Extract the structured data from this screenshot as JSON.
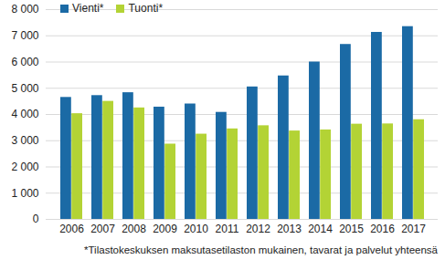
{
  "chart_data": {
    "type": "bar",
    "categories": [
      "2006",
      "2007",
      "2008",
      "2009",
      "2010",
      "2011",
      "2012",
      "2013",
      "2014",
      "2015",
      "2016",
      "2017"
    ],
    "series": [
      {
        "name": "Vienti*",
        "color": "#1b6aa5",
        "values": [
          4650,
          4720,
          4830,
          4280,
          4400,
          4080,
          5050,
          5470,
          6000,
          6670,
          7130,
          7350
        ]
      },
      {
        "name": "Tuonti*",
        "color": "#b3d335",
        "values": [
          4030,
          4500,
          4250,
          2870,
          3250,
          3450,
          3570,
          3370,
          3410,
          3630,
          3640,
          3800
        ]
      }
    ],
    "ylim": [
      0,
      8000
    ],
    "yticks": [
      0,
      {
        "value": 1000,
        "label": "1 000"
      },
      {
        "value": 2000,
        "label": "2 000"
      },
      {
        "value": 3000,
        "label": "3 000"
      },
      {
        "value": 4000,
        "label": "4 000"
      },
      {
        "value": 5000,
        "label": "5 000"
      },
      {
        "value": 6000,
        "label": "6 000"
      },
      {
        "value": 7000,
        "label": "7 000"
      },
      {
        "value": 8000,
        "label": "8 000"
      }
    ],
    "grid": true,
    "legend": "top-left",
    "caption": "*Tilastokeskuksen maksutasetilaston mukainen, tavarat ja palvelut yhteensä"
  }
}
